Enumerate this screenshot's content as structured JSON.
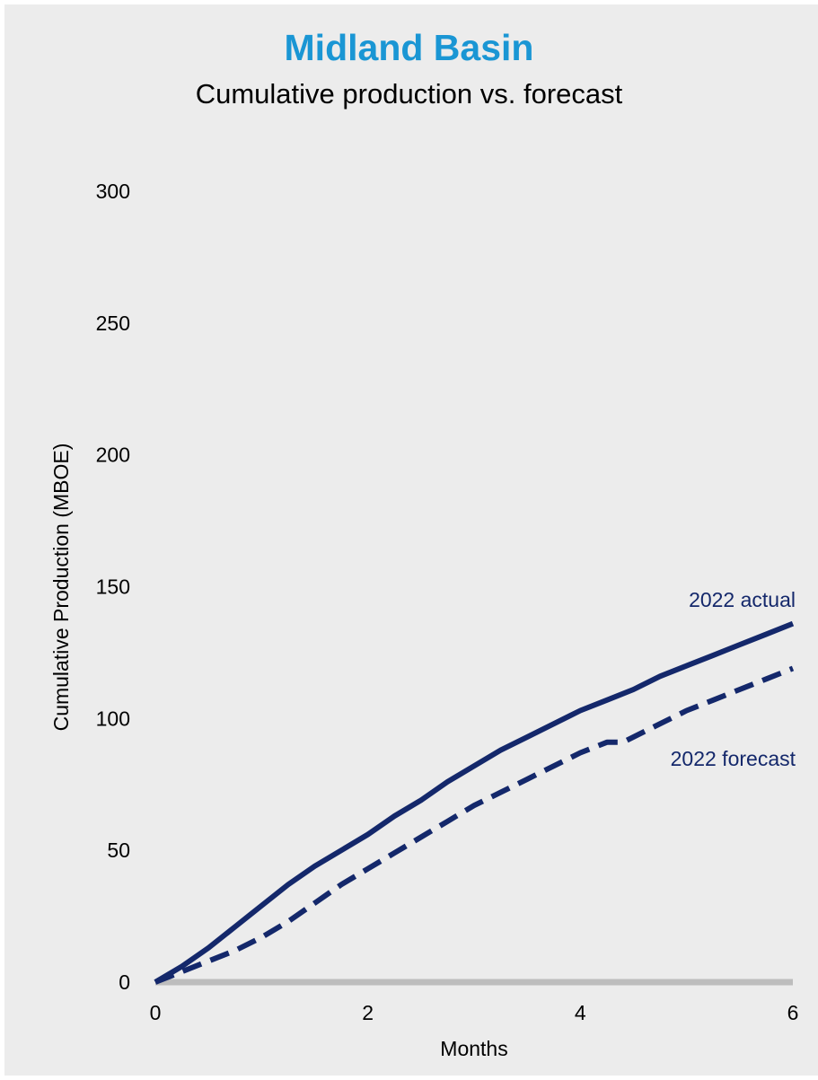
{
  "title": "Midland Basin",
  "subtitle": "Cumulative production vs. forecast",
  "colors": {
    "title": "#1a96d4",
    "series": "#14286b",
    "baseline": "#bdbdbd",
    "background": "#ececec"
  },
  "chart_data": {
    "type": "line",
    "xlabel": "Months",
    "ylabel": "Cumulative Production (MBOE)",
    "xlim": [
      0,
      6
    ],
    "ylim": [
      0,
      300
    ],
    "xticks": [
      0,
      2,
      4,
      6
    ],
    "yticks": [
      0,
      50,
      100,
      150,
      200,
      250,
      300
    ],
    "grid": false,
    "series": [
      {
        "name": "2022 actual",
        "style": "solid",
        "x": [
          0,
          0.25,
          0.5,
          0.75,
          1.0,
          1.25,
          1.5,
          1.75,
          2.0,
          2.25,
          2.5,
          2.75,
          3.0,
          3.25,
          3.5,
          3.75,
          4.0,
          4.25,
          4.5,
          4.75,
          5.0,
          5.25,
          5.5,
          5.75,
          6.0
        ],
        "y": [
          0,
          6,
          13,
          21,
          29,
          37,
          44,
          50,
          56,
          63,
          69,
          76,
          82,
          88,
          93,
          98,
          103,
          107,
          111,
          116,
          120,
          124,
          128,
          132,
          136
        ]
      },
      {
        "name": "2022 forecast",
        "style": "dashed",
        "x": [
          0,
          0.25,
          0.5,
          0.75,
          1.0,
          1.25,
          1.5,
          1.75,
          2.0,
          2.25,
          2.5,
          2.75,
          3.0,
          3.25,
          3.5,
          3.75,
          4.0,
          4.25,
          4.4,
          4.5,
          4.75,
          5.0,
          5.25,
          5.5,
          5.75,
          6.0
        ],
        "y": [
          0,
          4,
          8,
          12,
          17,
          23,
          30,
          37,
          43,
          49,
          55,
          61,
          67,
          72,
          77,
          82,
          87,
          91,
          91,
          93,
          98,
          103,
          107,
          111,
          115,
          119
        ]
      }
    ]
  }
}
